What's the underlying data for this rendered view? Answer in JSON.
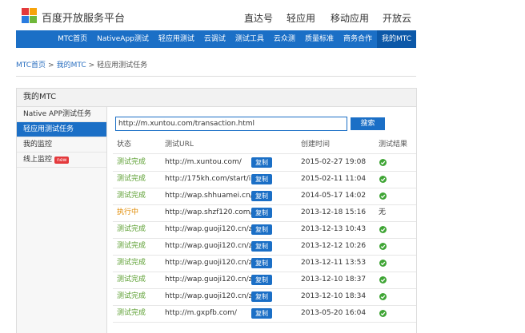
{
  "header": {
    "logo_text": "百度开放服务平台",
    "nav": [
      "直达号",
      "轻应用",
      "移动应用",
      "开放云"
    ]
  },
  "menu": {
    "items": [
      "MTC首页",
      "NativeApp测试",
      "轻应用测试",
      "云调试",
      "测试工具",
      "云众测",
      "质量标准",
      "商务合作",
      "我的MTC"
    ],
    "active": 8
  },
  "breadcrumb": {
    "items": [
      "MTC首页",
      "我的MTC",
      "轻应用测试任务"
    ],
    "separator": ">"
  },
  "panel": {
    "title": "我的MTC",
    "sidebar": {
      "items": [
        "Native APP测试任务",
        "轻应用测试任务",
        "我的监控",
        "线上监控"
      ],
      "active": 1,
      "badge": "new"
    },
    "search": {
      "value": "http://m.xuntou.com/transaction.html",
      "button": "搜索"
    },
    "table": {
      "columns": [
        "状态",
        "测试URL",
        "创建时间",
        "测试结果"
      ],
      "copy_label": "复制",
      "rows": [
        {
          "status": "测试完成",
          "url": "http://m.xuntou.com/",
          "time": "2015-02-27 19:08"
        },
        {
          "status": "测试完成",
          "url": "http://175kh.com/start/in...",
          "time": "2015-02-11 11:04"
        },
        {
          "status": "测试完成",
          "url": "http://wap.shhuamei.cn/sp...",
          "time": "2014-05-17 14:02"
        },
        {
          "status": "执行中",
          "url": "http://wap.shzf120.com/ww",
          "time": "2013-12-18 15:16",
          "result": "无"
        },
        {
          "status": "测试完成",
          "url": "http://wap.guoji120.cn/zt...",
          "time": "2013-12-13 10:43"
        },
        {
          "status": "测试完成",
          "url": "http://wap.guoji120.cn/zt...",
          "time": "2013-12-12 10:26"
        },
        {
          "status": "测试完成",
          "url": "http://wap.guoji120.cn/zt...",
          "time": "2013-12-11 13:53"
        },
        {
          "status": "测试完成",
          "url": "http://wap.guoji120.cn/zt...",
          "time": "2013-12-10 18:37"
        },
        {
          "status": "测试完成",
          "url": "http://wap.guoji120.cn/zt...",
          "time": "2013-12-10 18:34"
        },
        {
          "status": "测试完成",
          "url": "http://m.gxpfb.com/",
          "time": "2013-05-20 16:04"
        }
      ]
    }
  }
}
